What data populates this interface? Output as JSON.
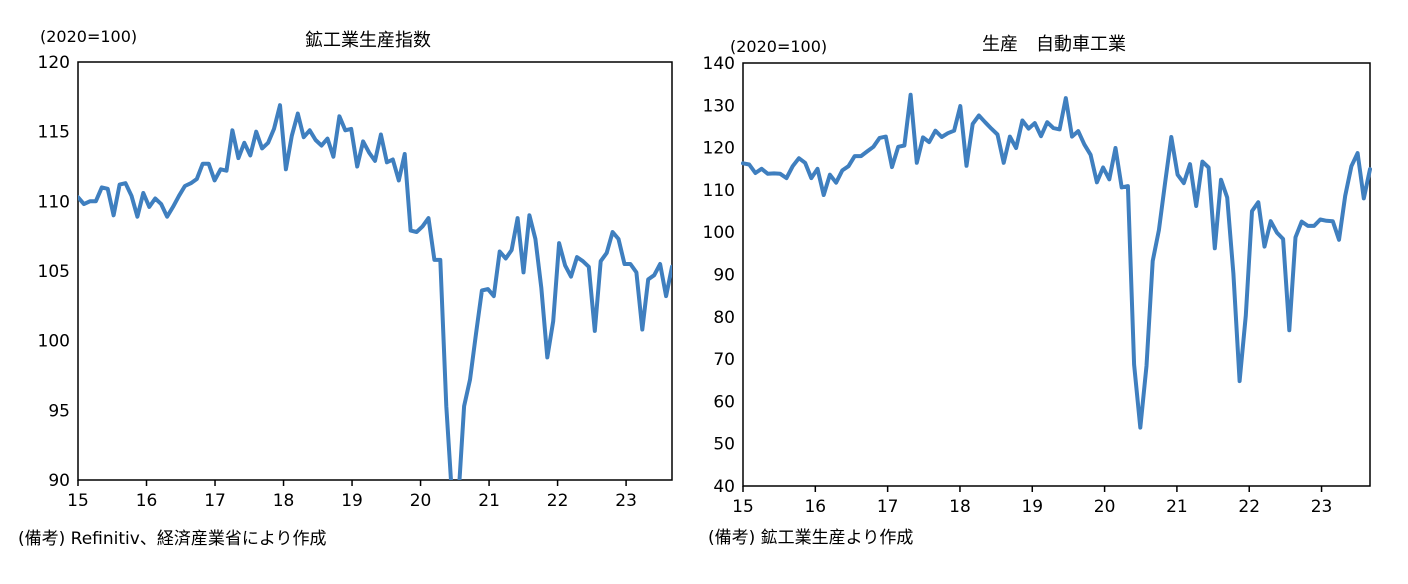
{
  "chart_data": [
    {
      "type": "line",
      "title": "鉱工業生産指数",
      "unit_label": "(2020=100)",
      "note": "(備考) Refinitiv、経済産業省により作成",
      "ylim": [
        90,
        120
      ],
      "yticks": [
        "120",
        "115",
        "110",
        "105",
        "100",
        "95",
        "90"
      ],
      "xticks": [
        "15",
        "16",
        "17",
        "18",
        "19",
        "20",
        "21",
        "22",
        "23"
      ],
      "x_start": 2015.0,
      "x_end": 2023.67,
      "series_color": "#3f7fbf",
      "series": [
        {
          "values": [
            110.3,
            109.8,
            110.0,
            110.0,
            111.0,
            110.9,
            109.0,
            111.2,
            111.3,
            110.4,
            108.9,
            110.6,
            109.6,
            110.2,
            109.8,
            108.9,
            109.6,
            110.4,
            111.1,
            111.3,
            111.6,
            112.7,
            112.7,
            111.5,
            112.3,
            112.2,
            115.1,
            113.1,
            114.2,
            113.3,
            115.0,
            113.8,
            114.2,
            115.2,
            116.9,
            112.3,
            114.7,
            116.3,
            114.6,
            115.1,
            114.4,
            114.0,
            114.5,
            113.2,
            116.1,
            115.1,
            115.2,
            112.5,
            114.3,
            113.5,
            112.9,
            114.8,
            112.8,
            113.0,
            111.5,
            113.4,
            107.9,
            107.8,
            108.2,
            108.8,
            105.8,
            105.8,
            95.3,
            88.6,
            88.5,
            95.3,
            97.2,
            100.5,
            103.6,
            103.7,
            103.2,
            106.4,
            105.9,
            106.5,
            108.8,
            104.9,
            109.0,
            107.3,
            103.8,
            98.8,
            101.4,
            107.0,
            105.4,
            104.6,
            106.0,
            105.7,
            105.3,
            100.7,
            105.7,
            106.3,
            107.8,
            107.3,
            105.5,
            105.5,
            104.9,
            100.8,
            104.4,
            104.7,
            105.5,
            103.2,
            105.3
          ]
        }
      ]
    },
    {
      "type": "line",
      "title": "生産　自動車工業",
      "unit_label": "(2020=100)",
      "note": "(備考) 鉱工業生産より作成",
      "ylim": [
        40,
        140
      ],
      "yticks": [
        "140",
        "130",
        "120",
        "110",
        "100",
        "90",
        "80",
        "70",
        "60",
        "50",
        "40"
      ],
      "xticks": [
        "15",
        "16",
        "17",
        "18",
        "19",
        "20",
        "21",
        "22",
        "23"
      ],
      "x_start": 2015.0,
      "x_end": 2023.67,
      "series_color": "#3f7fbf",
      "series": [
        {
          "values": [
            116.3,
            116.0,
            114.0,
            115.0,
            113.8,
            113.9,
            113.8,
            112.8,
            115.6,
            117.5,
            116.4,
            112.8,
            115.0,
            108.8,
            113.6,
            111.7,
            114.6,
            115.6,
            118.0,
            118.0,
            119.1,
            120.2,
            122.3,
            122.6,
            115.4,
            120.2,
            120.5,
            132.5,
            116.4,
            122.4,
            121.3,
            124.0,
            122.5,
            123.4,
            124.0,
            129.8,
            115.7,
            125.6,
            127.6,
            126.0,
            124.5,
            123.1,
            116.4,
            122.6,
            119.9,
            126.4,
            124.5,
            125.8,
            122.7,
            126.0,
            124.6,
            124.3,
            131.7,
            122.6,
            123.9,
            120.7,
            118.3,
            111.8,
            115.3,
            112.5,
            119.9,
            110.6,
            110.9,
            68.7,
            53.8,
            68.4,
            93.2,
            100.5,
            111.7,
            122.5,
            113.6,
            111.6,
            116.1,
            106.2,
            116.7,
            115.3,
            96.2,
            112.4,
            108.2,
            90.2,
            64.8,
            80.3,
            105.0,
            107.1,
            96.6,
            102.6,
            99.9,
            98.4,
            76.8,
            98.8,
            102.5,
            101.5,
            101.5,
            103.0,
            102.7,
            102.6,
            98.2,
            108.6,
            115.6,
            118.7,
            108.0,
            114.9
          ]
        }
      ]
    }
  ]
}
